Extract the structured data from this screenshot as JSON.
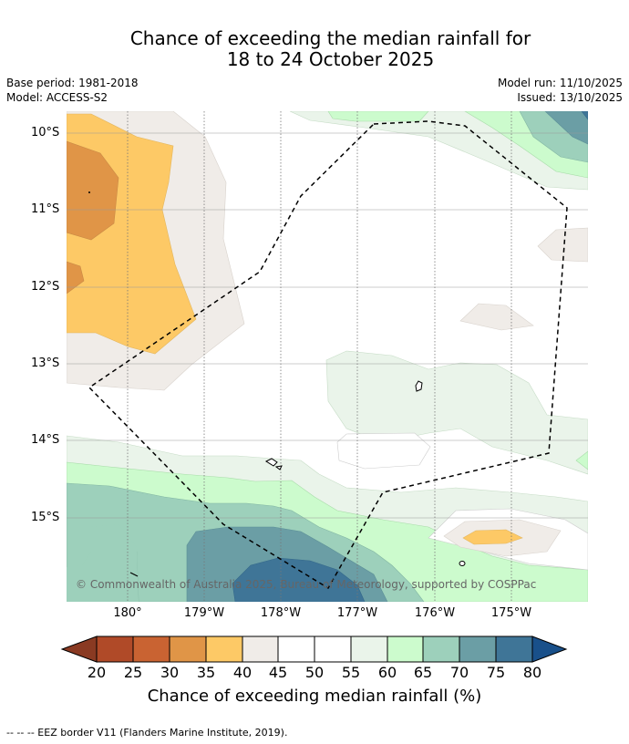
{
  "title": {
    "line1": "Chance of exceeding the median rainfall for",
    "line2": "18 to 24 October 2025"
  },
  "meta": {
    "base_period": "Base period: 1981-2018",
    "model": "Model: ACCESS-S2",
    "model_run": "Model run: 11/10/2025",
    "issued": "Issued: 13/10/2025"
  },
  "axes": {
    "lat_labels": [
      "10°S",
      "11°S",
      "12°S",
      "13°S",
      "14°S",
      "15°S"
    ],
    "lon_labels": [
      "180°",
      "179°W",
      "178°W",
      "177°W",
      "176°W",
      "175°W"
    ]
  },
  "map": {
    "copyright": "© Commonwealth of Australia 2025, Bureau of Meteorology, supported by COSPPac"
  },
  "colorbar": {
    "ticks": [
      "20",
      "25",
      "30",
      "35",
      "40",
      "45",
      "50",
      "55",
      "60",
      "65",
      "70",
      "75",
      "80"
    ],
    "colors": {
      "lt20": "#8a3a22",
      "20-25": "#b04a28",
      "25-30": "#c96332",
      "30-35": "#e09547",
      "35-40": "#fdc966",
      "40-45": "#f0ece8",
      "45-50": "#ffffff",
      "50-55": "#ffffff",
      "55-60": "#eaf4ea",
      "60-65": "#ccfbcd",
      "65-70": "#9dd0bb",
      "70-75": "#6b9ea5",
      "75-80": "#3f7597",
      "gt80": "#19508a"
    },
    "label": "Chance of exceeding median rainfall (%)"
  },
  "legend": {
    "eez_text": "-- -- -- EEZ border V11 (Flanders Marine Institute, 2019)."
  }
}
